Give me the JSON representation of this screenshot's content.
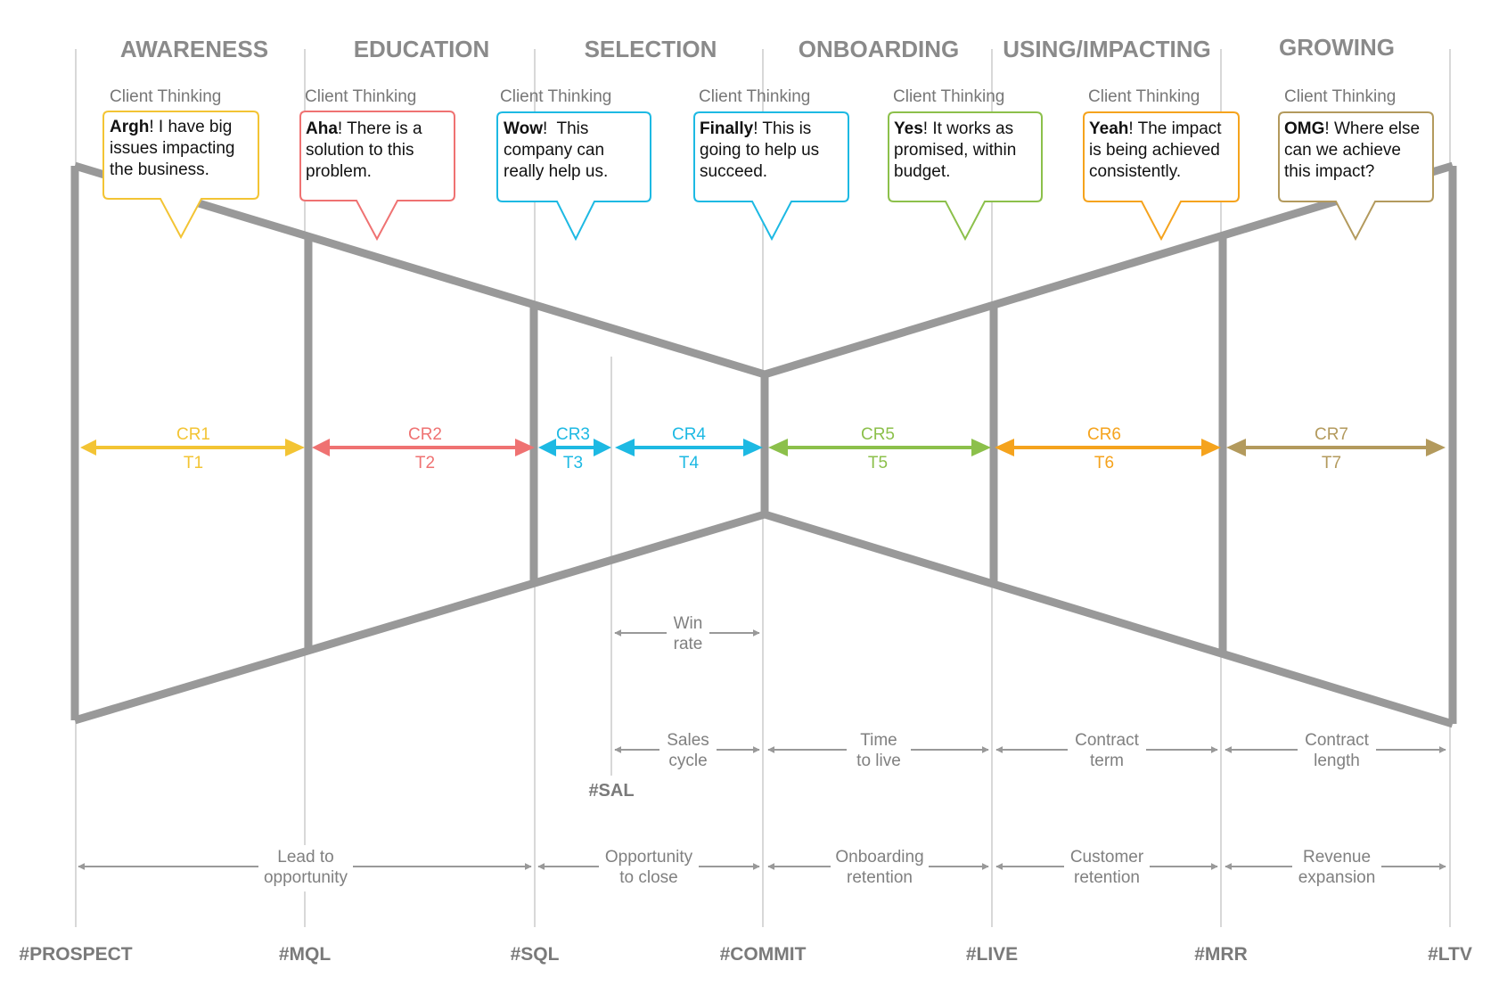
{
  "colors": {
    "yellow": "#f3c434",
    "red": "#ef7272",
    "cyan": "#1db9e3",
    "green": "#8cc04b",
    "orange": "#f5a31d",
    "tan": "#b39a5d",
    "gray": "#999999",
    "guide": "#bdbdbd"
  },
  "stages": [
    "AWARENESS",
    "EDUCATION",
    "SELECTION",
    "ONBOARDING",
    "USING/IMPACTING",
    "GROWING"
  ],
  "client_thinking_label": "Client Thinking",
  "bubbles": [
    {
      "bold": "Argh",
      "l1": "! I have big",
      "l2": "issues impacting",
      "l3": "the business."
    },
    {
      "bold": "Aha",
      "l1": "! There is a",
      "l2": "solution to this",
      "l3": "problem."
    },
    {
      "bold": "Wow",
      "l1": "!  This",
      "l2": "company can",
      "l3": "really help us."
    },
    {
      "bold": "Finally",
      "l1": "! This is",
      "l2": "going to help us",
      "l3": "succeed."
    },
    {
      "bold": "Yes",
      "l1": "! It works as",
      "l2": "promised, within",
      "l3": "budget."
    },
    {
      "bold": "Yeah",
      "l1": "! The impact",
      "l2": "is being achieved",
      "l3": "consistently."
    },
    {
      "bold": "OMG",
      "l1": "! Where else",
      "l2": "can we achieve",
      "l3": "this impact?"
    }
  ],
  "conversions": [
    {
      "cr": "CR1",
      "t": "T1"
    },
    {
      "cr": "CR2",
      "t": "T2"
    },
    {
      "cr": "CR3",
      "t": "T3"
    },
    {
      "cr": "CR4",
      "t": "T4"
    },
    {
      "cr": "CR5",
      "t": "T5"
    },
    {
      "cr": "CR6",
      "t": "T6"
    },
    {
      "cr": "CR7",
      "t": "T7"
    }
  ],
  "metrics_mid": [
    {
      "l1": "Win",
      "l2": "rate"
    }
  ],
  "metrics_row1": [
    {
      "l1": "Sales",
      "l2": "cycle"
    },
    {
      "l1": "Time",
      "l2": "to live"
    },
    {
      "l1": "Contract",
      "l2": "term"
    },
    {
      "l1": "Contract",
      "l2": "length"
    }
  ],
  "metrics_row2": [
    {
      "l1": "Lead to",
      "l2": "opportunity"
    },
    {
      "l1": "Opportunity",
      "l2": "to close"
    },
    {
      "l1": "Onboarding",
      "l2": "retention"
    },
    {
      "l1": "Customer",
      "l2": "retention"
    },
    {
      "l1": "Revenue",
      "l2": "expansion"
    }
  ],
  "milestones": [
    "#PROSPECT",
    "#MQL",
    "#SQL",
    "#COMMIT",
    "#LIVE",
    "#MRR",
    "#LTV"
  ],
  "sal_label": "#SAL"
}
